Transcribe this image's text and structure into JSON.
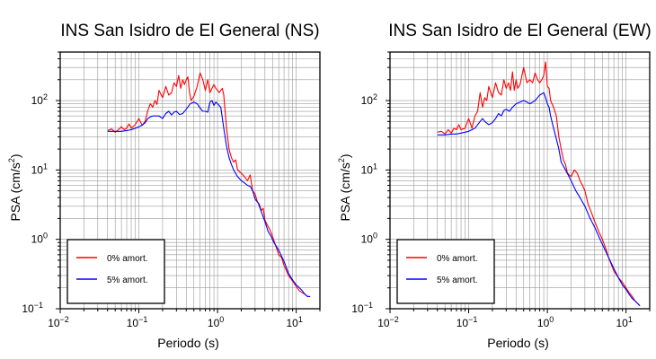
{
  "chart_data": [
    {
      "type": "line",
      "title": "INS San Isidro de El General (NS)",
      "xlabel": "Periodo (s)",
      "ylabel": {
        "base": "PSA (cm/s",
        "sup": "2",
        "tail": ")"
      },
      "xscale": "log",
      "yscale": "log",
      "xlim": [
        0.01,
        20
      ],
      "ylim": [
        0.1,
        500
      ],
      "xticks": [
        {
          "base": "10",
          "exp": "−2",
          "value": 0.01
        },
        {
          "base": "10",
          "exp": "−1",
          "value": 0.1
        },
        {
          "base": "10",
          "exp": "0",
          "value": 1
        },
        {
          "base": "10",
          "exp": "1",
          "value": 10
        }
      ],
      "yticks": [
        {
          "base": "10",
          "exp": "−1",
          "value": 0.1
        },
        {
          "base": "10",
          "exp": "0",
          "value": 1
        },
        {
          "base": "10",
          "exp": "1",
          "value": 10
        },
        {
          "base": "10",
          "exp": "2",
          "value": 100
        }
      ],
      "grid": true,
      "legend_position": "bottom-left",
      "series": [
        {
          "name": "0% amort.",
          "color": "#ff0000",
          "x": [
            0.04,
            0.045,
            0.05,
            0.055,
            0.06,
            0.065,
            0.07,
            0.075,
            0.08,
            0.09,
            0.1,
            0.11,
            0.12,
            0.13,
            0.14,
            0.15,
            0.16,
            0.17,
            0.18,
            0.2,
            0.22,
            0.24,
            0.26,
            0.28,
            0.3,
            0.32,
            0.34,
            0.36,
            0.38,
            0.4,
            0.42,
            0.44,
            0.46,
            0.5,
            0.55,
            0.6,
            0.65,
            0.7,
            0.75,
            0.8,
            0.85,
            0.9,
            0.95,
            1.0,
            1.05,
            1.1,
            1.15,
            1.2,
            1.3,
            1.4,
            1.5,
            1.6,
            1.7,
            1.8,
            2.0,
            2.2,
            2.4,
            2.6,
            2.8,
            3.0,
            3.2,
            3.4,
            3.6,
            3.8,
            4.0,
            4.3,
            4.6,
            5.0,
            5.5,
            6.0,
            6.5,
            7.0,
            8.0,
            9.0,
            10.0,
            11.0,
            12.0,
            13.0,
            14.0,
            15.0
          ],
          "y": [
            37,
            39,
            35,
            38,
            42,
            38,
            40,
            46,
            40,
            45,
            55,
            44,
            50,
            72,
            90,
            80,
            100,
            88,
            140,
            110,
            160,
            120,
            130,
            180,
            160,
            230,
            150,
            200,
            170,
            200,
            220,
            130,
            100,
            115,
            160,
            250,
            200,
            140,
            200,
            130,
            150,
            170,
            150,
            140,
            130,
            140,
            150,
            120,
            40,
            20,
            15,
            13,
            14,
            10,
            9,
            8,
            7,
            8.5,
            5,
            4.5,
            3.5,
            3.2,
            2.6,
            2.8,
            1.9,
            1.6,
            1.4,
            1.1,
            0.8,
            0.6,
            0.55,
            0.42,
            0.3,
            0.25,
            0.21,
            0.18,
            0.17,
            0.16,
            0.15,
            0.15
          ]
        },
        {
          "name": "5% amort.",
          "color": "#0000ff",
          "x": [
            0.04,
            0.05,
            0.06,
            0.07,
            0.08,
            0.09,
            0.1,
            0.11,
            0.12,
            0.13,
            0.14,
            0.15,
            0.16,
            0.18,
            0.2,
            0.22,
            0.24,
            0.26,
            0.28,
            0.3,
            0.33,
            0.36,
            0.4,
            0.45,
            0.5,
            0.55,
            0.6,
            0.65,
            0.7,
            0.75,
            0.8,
            0.85,
            0.9,
            0.95,
            1.0,
            1.1,
            1.2,
            1.3,
            1.4,
            1.5,
            1.6,
            1.8,
            2.0,
            2.2,
            2.4,
            2.6,
            2.8,
            3.0,
            3.3,
            3.6,
            4.0,
            4.4,
            4.8,
            5.2,
            6.0,
            7.0,
            8.0,
            9.0,
            10.0,
            11.0,
            12.0,
            13.0,
            14.0,
            15.0
          ],
          "y": [
            36,
            36,
            36,
            37,
            38,
            40,
            42,
            44,
            48,
            55,
            58,
            60,
            60,
            60,
            55,
            65,
            70,
            62,
            68,
            70,
            63,
            65,
            75,
            90,
            95,
            90,
            78,
            70,
            70,
            68,
            95,
            100,
            85,
            95,
            90,
            80,
            40,
            22,
            15,
            12,
            10,
            8,
            7,
            6.5,
            6,
            5.8,
            5,
            3.8,
            3.3,
            2.5,
            1.8,
            1.3,
            1.1,
            0.9,
            0.7,
            0.48,
            0.32,
            0.26,
            0.22,
            0.2,
            0.18,
            0.16,
            0.15,
            0.15
          ]
        }
      ]
    },
    {
      "type": "line",
      "title": "INS San Isidro de El General (EW)",
      "xlabel": "Periodo (s)",
      "ylabel": {
        "base": "PSA (cm/s",
        "sup": "2",
        "tail": ")"
      },
      "xscale": "log",
      "yscale": "log",
      "xlim": [
        0.01,
        20
      ],
      "ylim": [
        0.1,
        500
      ],
      "xticks": [
        {
          "base": "10",
          "exp": "−2",
          "value": 0.01
        },
        {
          "base": "10",
          "exp": "−1",
          "value": 0.1
        },
        {
          "base": "10",
          "exp": "0",
          "value": 1
        },
        {
          "base": "10",
          "exp": "1",
          "value": 10
        }
      ],
      "yticks": [
        {
          "base": "10",
          "exp": "−1",
          "value": 0.1
        },
        {
          "base": "10",
          "exp": "0",
          "value": 1
        },
        {
          "base": "10",
          "exp": "1",
          "value": 10
        },
        {
          "base": "10",
          "exp": "2",
          "value": 100
        }
      ],
      "grid": true,
      "legend_position": "bottom-left",
      "series": [
        {
          "name": "0% amort.",
          "color": "#ff0000",
          "x": [
            0.04,
            0.045,
            0.05,
            0.055,
            0.06,
            0.065,
            0.07,
            0.075,
            0.08,
            0.09,
            0.1,
            0.11,
            0.12,
            0.13,
            0.14,
            0.15,
            0.16,
            0.17,
            0.18,
            0.2,
            0.22,
            0.24,
            0.26,
            0.28,
            0.3,
            0.32,
            0.34,
            0.36,
            0.38,
            0.4,
            0.42,
            0.45,
            0.5,
            0.55,
            0.6,
            0.65,
            0.7,
            0.75,
            0.8,
            0.85,
            0.9,
            0.95,
            1.0,
            1.05,
            1.1,
            1.2,
            1.3,
            1.4,
            1.5,
            1.6,
            1.7,
            1.8,
            2.0,
            2.2,
            2.4,
            2.6,
            2.8,
            3.0,
            3.3,
            3.6,
            4.0,
            4.5,
            5.0,
            5.5,
            6.0,
            7.0,
            8.0,
            9.0,
            10.0,
            11.0,
            12.0,
            13.0,
            14.0,
            15.0
          ],
          "y": [
            35,
            36,
            33,
            38,
            34,
            40,
            38,
            45,
            38,
            40,
            55,
            40,
            60,
            70,
            130,
            80,
            110,
            100,
            160,
            110,
            180,
            130,
            120,
            200,
            150,
            180,
            140,
            260,
            140,
            200,
            150,
            170,
            300,
            180,
            200,
            180,
            250,
            200,
            180,
            200,
            230,
            360,
            160,
            150,
            100,
            80,
            60,
            30,
            20,
            14,
            12,
            9,
            8,
            10,
            9,
            7,
            6,
            5,
            3.2,
            2.5,
            1.8,
            1.3,
            1.0,
            0.75,
            0.55,
            0.35,
            0.28,
            0.24,
            0.2,
            0.17,
            0.15,
            0.13,
            0.12,
            0.11
          ]
        },
        {
          "name": "5% amort.",
          "color": "#0000ff",
          "x": [
            0.04,
            0.05,
            0.06,
            0.07,
            0.08,
            0.09,
            0.1,
            0.11,
            0.12,
            0.13,
            0.14,
            0.15,
            0.16,
            0.18,
            0.2,
            0.22,
            0.24,
            0.26,
            0.28,
            0.3,
            0.33,
            0.36,
            0.4,
            0.45,
            0.5,
            0.55,
            0.6,
            0.65,
            0.7,
            0.75,
            0.8,
            0.85,
            0.9,
            0.95,
            1.0,
            1.05,
            1.1,
            1.2,
            1.3,
            1.4,
            1.5,
            1.7,
            2.0,
            2.3,
            2.6,
            3.0,
            3.5,
            4.0,
            4.5,
            5.0,
            6.0,
            7.0,
            8.0,
            9.0,
            10.0,
            11.0,
            12.0,
            13.0,
            14.0,
            15.0
          ],
          "y": [
            32,
            32,
            33,
            33,
            34,
            35,
            36,
            38,
            40,
            45,
            50,
            55,
            50,
            45,
            48,
            55,
            65,
            60,
            72,
            75,
            70,
            80,
            90,
            95,
            100,
            95,
            90,
            95,
            100,
            110,
            120,
            125,
            130,
            110,
            90,
            80,
            60,
            40,
            28,
            20,
            13,
            10,
            7,
            5,
            4,
            3,
            2,
            1.5,
            1.1,
            0.85,
            0.55,
            0.38,
            0.28,
            0.22,
            0.19,
            0.16,
            0.14,
            0.13,
            0.12,
            0.11
          ]
        }
      ]
    }
  ]
}
